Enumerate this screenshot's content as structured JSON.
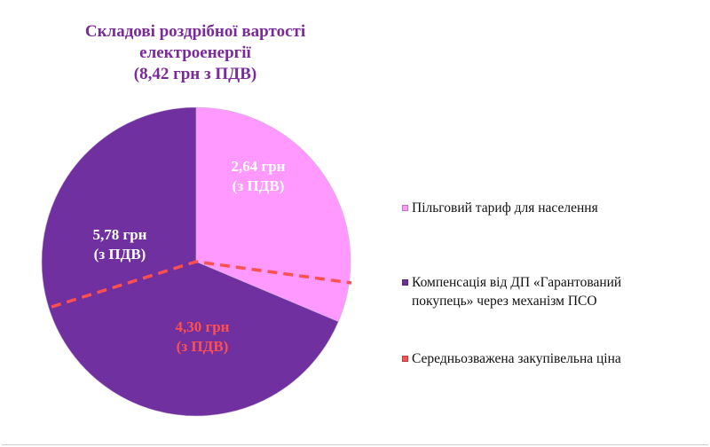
{
  "chart_data": {
    "type": "pie",
    "title": [
      "Складові роздрібної вартості",
      "електроенергії",
      "(8,42 грн з ПДВ)"
    ],
    "slices": [
      {
        "name": "Пільговий тариф для населення",
        "value": 2.64,
        "color": "#ff99ff",
        "label": [
          "2,64 грн",
          "(з ПДВ)"
        ],
        "label_color": "#ffffff"
      },
      {
        "name": "Компенсація від ДП «Гарантований покупець» через механізм ПСО",
        "value": 5.78,
        "color": "#7030a0",
        "label": [
          "5,78 грн",
          "(з ПДВ)"
        ],
        "label_color": "#ffffff"
      }
    ],
    "overlay_segment": {
      "name": "Середньозважена закупівельна ціна",
      "value": 4.3,
      "color": "#ff5050",
      "label": [
        "4,30 грн",
        "(з ПДВ)"
      ],
      "label_color": "#ff5050",
      "style": "dashed"
    },
    "legend": [
      {
        "label": "Пільговий тариф для населення",
        "color": "#ff99ff"
      },
      {
        "label": "Компенсація від ДП «Гарантований покупець» через механізм ПСО",
        "color": "#7030a0"
      },
      {
        "label": "Середньозважена закупівельна ціна",
        "color": "#ff5050"
      }
    ],
    "legend_position": "right"
  }
}
